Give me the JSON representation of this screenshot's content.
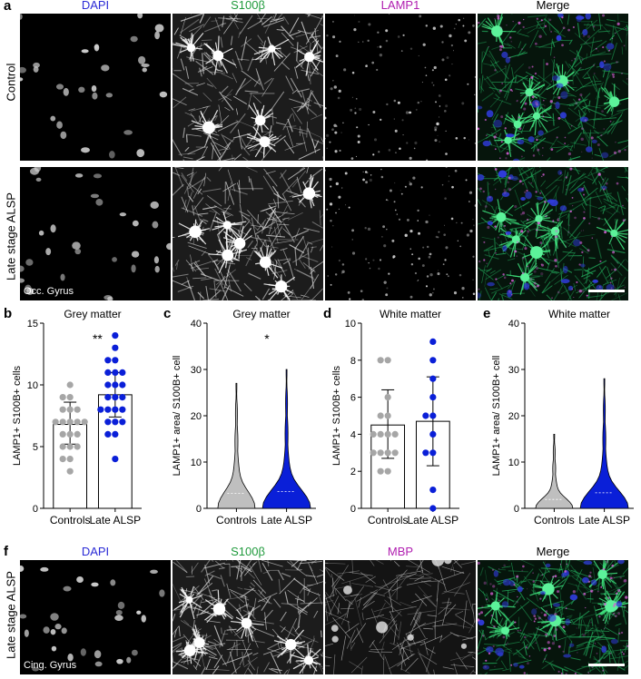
{
  "panels": {
    "a": {
      "letter": "a",
      "channels": [
        "DAPI",
        "S100β",
        "LAMP1",
        "Merge"
      ],
      "rows": [
        "Control",
        "Late stage ALSP"
      ],
      "region_tag": "Occ. Gyrus"
    },
    "f": {
      "letter": "f",
      "channels": [
        "DAPI",
        "S100β",
        "MBP",
        "Merge"
      ],
      "row": "Late stage ALSP",
      "region_tag": "Cing. Gyrus"
    }
  },
  "colors": {
    "dapi": "#2b2bd6",
    "s100b": "#1f9a3c",
    "lamp1": "#b01eb0",
    "mbp": "#b01eb0",
    "control_points": "#a6a6a6",
    "alsp_points": "#0a1fd8",
    "alsp_violin": "#0a1fd8",
    "control_violin": "#bfbfbf"
  },
  "chart_data": [
    {
      "panel": "b",
      "type": "scatter",
      "title": "Grey matter",
      "ylabel": "LAMP1+ S100B+ cells",
      "categories": [
        "Controls",
        "Late ALSP"
      ],
      "ylim": [
        0,
        15
      ],
      "yticks": [
        "0",
        "5",
        "10",
        "15"
      ],
      "significance": "**",
      "bars": [
        6.8,
        9.2
      ],
      "errors": [
        [
          5.2,
          8.6
        ],
        [
          7.4,
          11.0
        ]
      ],
      "series": [
        {
          "values": [
            3,
            4,
            4,
            5,
            5,
            5,
            6,
            6,
            6,
            7,
            7,
            7,
            7,
            7,
            8,
            8,
            8,
            9,
            9,
            10
          ]
        },
        {
          "values": [
            4,
            6,
            6,
            7,
            7,
            7,
            8,
            8,
            8,
            8,
            9,
            9,
            9,
            10,
            10,
            10,
            11,
            11,
            11,
            12,
            12,
            13,
            14
          ]
        }
      ]
    },
    {
      "panel": "c",
      "type": "violin",
      "title": "Grey matter",
      "ylabel": "LAMP1+ area/ S100B+ cell",
      "categories": [
        "Controls",
        "Late ALSP"
      ],
      "ylim": [
        0,
        40
      ],
      "yticks": [
        "0",
        "10",
        "20",
        "30",
        "40"
      ],
      "significance": "*",
      "range": [
        [
          0,
          27
        ],
        [
          0,
          30
        ]
      ]
    },
    {
      "panel": "d",
      "type": "scatter",
      "title": "White matter",
      "ylabel": "LAMP1+ S100B+ cells",
      "categories": [
        "Controls",
        "Late ALSP"
      ],
      "ylim": [
        0,
        10
      ],
      "yticks": [
        "0",
        "2",
        "4",
        "6",
        "8",
        "10"
      ],
      "bars": [
        4.5,
        4.7
      ],
      "errors": [
        [
          2.7,
          6.4
        ],
        [
          2.3,
          7.1
        ]
      ],
      "series": [
        {
          "values": [
            2,
            2,
            3,
            3,
            3,
            3,
            4,
            4,
            4,
            4,
            5,
            5,
            6,
            8,
            8
          ]
        },
        {
          "values": [
            0,
            1,
            3,
            3,
            4,
            5,
            5,
            6,
            7,
            8,
            9
          ]
        }
      ]
    },
    {
      "panel": "e",
      "type": "violin",
      "title": "White matter",
      "ylabel": "LAMP1+ area/ S100B+ cell",
      "categories": [
        "Controls",
        "Late ALSP"
      ],
      "ylim": [
        0,
        40
      ],
      "yticks": [
        "0",
        "10",
        "20",
        "30",
        "40"
      ],
      "range": [
        [
          0,
          16
        ],
        [
          0,
          28
        ]
      ]
    }
  ]
}
